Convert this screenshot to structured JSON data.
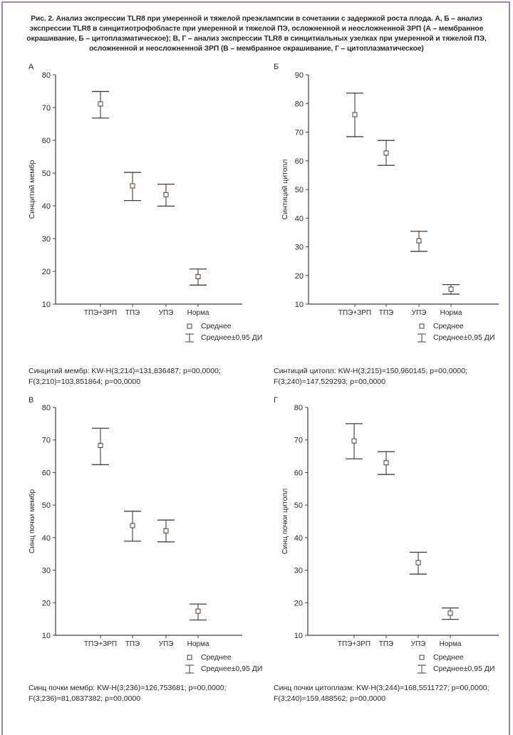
{
  "caption": "Рис. 2. Анализ экспрессии TLR8 при умеренной и тяжелой преэклампсии в сочетании с задержкой роста плода. А, Б – анализ экспрессии TLR8 в синцитиотрофобласте при умеренной  и тяжелой ПЭ, осложненной и неосложненной ЗРП (А – мембранное окрашивание, Б – цитоплазматическое); В, Г – анализ экспрессии TLR8 в синцитиальных узелках при умеренной  и тяжелой ПЭ, осложненной и неосложненной ЗРП (В – мембранное окрашивание, Г – цитоплазматическое)",
  "colors": {
    "ink": "#2e2620",
    "line": "#4a3c32",
    "frame": "#a47fa6"
  },
  "legend": {
    "mean": "Среднее",
    "ci": "Среднее±0,95 ДИ"
  },
  "chart_data": [
    {
      "type": "scatter",
      "panel": "А",
      "ylabel": "Синцитий мембр",
      "ylim": [
        10,
        80
      ],
      "yticks": [
        10,
        20,
        30,
        40,
        50,
        60,
        70,
        80
      ],
      "categories": [
        "ТПЭ+ЗРП",
        "ТПЭ",
        "УПЭ",
        "Норма"
      ],
      "mean": [
        71.1,
        46.1,
        43.4,
        18.4
      ],
      "ci_low": [
        66.8,
        41.6,
        39.9,
        15.8
      ],
      "ci_high": [
        74.9,
        50.2,
        46.6,
        20.7
      ],
      "stats": [
        "Синцитий мембр: KW-H(3;214)=131,836487; p=00,0000;",
        "F(3;210)=103,851864; p=00,0000"
      ]
    },
    {
      "type": "scatter",
      "panel": "Б",
      "ylabel": "Синтиций цитопл",
      "ylim": [
        10,
        90
      ],
      "yticks": [
        10,
        20,
        30,
        40,
        50,
        60,
        70,
        80,
        90
      ],
      "categories": [
        "ТПЭ+ЗРП",
        "ТПЭ",
        "УПЭ",
        "Норма"
      ],
      "mean": [
        76.1,
        62.7,
        32.1,
        15.2
      ],
      "ci_low": [
        68.4,
        58.4,
        28.4,
        13.5
      ],
      "ci_high": [
        83.6,
        67.1,
        35.4,
        16.8
      ],
      "stats": [
        "Синтиций цитопл: KW-H(3;215)=150,960145; p=00,0000;",
        "F(3;240)=147,529293; p=00,0000"
      ]
    },
    {
      "type": "scatter",
      "panel": "В",
      "ylabel": "Синц почки мембр",
      "ylim": [
        10,
        80
      ],
      "yticks": [
        10,
        20,
        30,
        40,
        50,
        60,
        70,
        80
      ],
      "categories": [
        "ТПЭ+ЗРП",
        "ТПЭ",
        "УПЭ",
        "Норма"
      ],
      "mean": [
        68.3,
        43.7,
        42.1,
        17.4
      ],
      "ci_low": [
        62.4,
        38.9,
        38.7,
        14.7
      ],
      "ci_high": [
        73.6,
        48.1,
        45.4,
        19.6
      ],
      "stats": [
        "Синц почки мембр: KW-H(3;236)=126,753681; p=00,0000;",
        "F(3;236)=81,0837382; p=00,0000"
      ]
    },
    {
      "type": "scatter",
      "panel": "Г",
      "ylabel": "Синц почки цитопл",
      "ylim": [
        10,
        80
      ],
      "yticks": [
        10,
        20,
        30,
        40,
        50,
        60,
        70,
        80
      ],
      "categories": [
        "ТПЭ+ЗРП",
        "ТПЭ",
        "УПЭ",
        "Норма"
      ],
      "mean": [
        69.7,
        63.0,
        32.3,
        16.8
      ],
      "ci_low": [
        64.2,
        59.4,
        28.8,
        14.9
      ],
      "ci_high": [
        75.0,
        66.4,
        35.5,
        18.4
      ],
      "stats": [
        "Синц почки цитоплазм: KW-H(3;244)=168,5511727; p=00,0000;",
        "F(3;240)=159,488562; p=00,0000"
      ]
    }
  ]
}
